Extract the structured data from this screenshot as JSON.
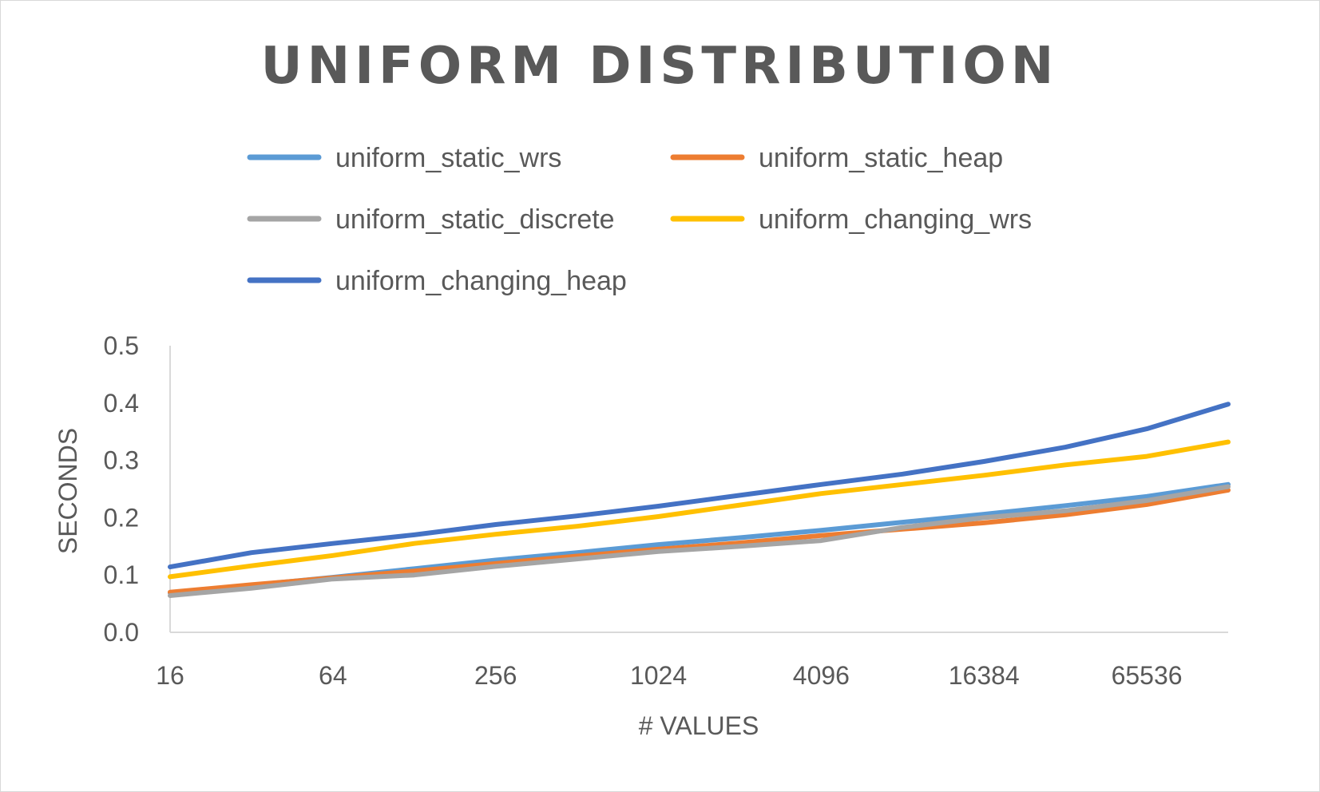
{
  "chart_data": {
    "type": "line",
    "title": "UNIFORM DISTRIBUTION",
    "xlabel": "# VALUES",
    "ylabel": "SECONDS",
    "x_tick_labels": [
      "16",
      "64",
      "256",
      "1024",
      "4096",
      "16384",
      "65536"
    ],
    "x": [
      16,
      32,
      64,
      128,
      256,
      512,
      1024,
      2048,
      4096,
      8192,
      16384,
      32768,
      65536,
      131072
    ],
    "x_scale": "log2",
    "ylim": [
      0.0,
      0.5
    ],
    "y_ticks": [
      "0.0",
      "0.1",
      "0.2",
      "0.3",
      "0.4",
      "0.5"
    ],
    "grid": false,
    "legend_position": "top",
    "series": [
      {
        "name": "uniform_static_wrs",
        "color": "#5b9bd5",
        "values": [
          0.069,
          0.082,
          0.096,
          0.111,
          0.126,
          0.139,
          0.153,
          0.165,
          0.178,
          0.192,
          0.206,
          0.221,
          0.237,
          0.258
        ]
      },
      {
        "name": "uniform_static_heap",
        "color": "#ed7d31",
        "values": [
          0.07,
          0.083,
          0.095,
          0.107,
          0.12,
          0.133,
          0.145,
          0.156,
          0.169,
          0.18,
          0.191,
          0.205,
          0.223,
          0.248
        ]
      },
      {
        "name": "uniform_static_discrete",
        "color": "#a5a5a5",
        "values": [
          0.064,
          0.077,
          0.093,
          0.1,
          0.115,
          0.128,
          0.141,
          0.15,
          0.16,
          0.183,
          0.2,
          0.212,
          0.23,
          0.254
        ]
      },
      {
        "name": "uniform_changing_wrs",
        "color": "#ffc000",
        "values": [
          0.097,
          0.116,
          0.134,
          0.155,
          0.171,
          0.185,
          0.202,
          0.222,
          0.242,
          0.258,
          0.274,
          0.292,
          0.307,
          0.332
        ]
      },
      {
        "name": "uniform_changing_heap",
        "color": "#4472c4",
        "values": [
          0.114,
          0.139,
          0.155,
          0.17,
          0.188,
          0.203,
          0.22,
          0.239,
          0.258,
          0.276,
          0.298,
          0.323,
          0.355,
          0.398
        ]
      }
    ]
  }
}
